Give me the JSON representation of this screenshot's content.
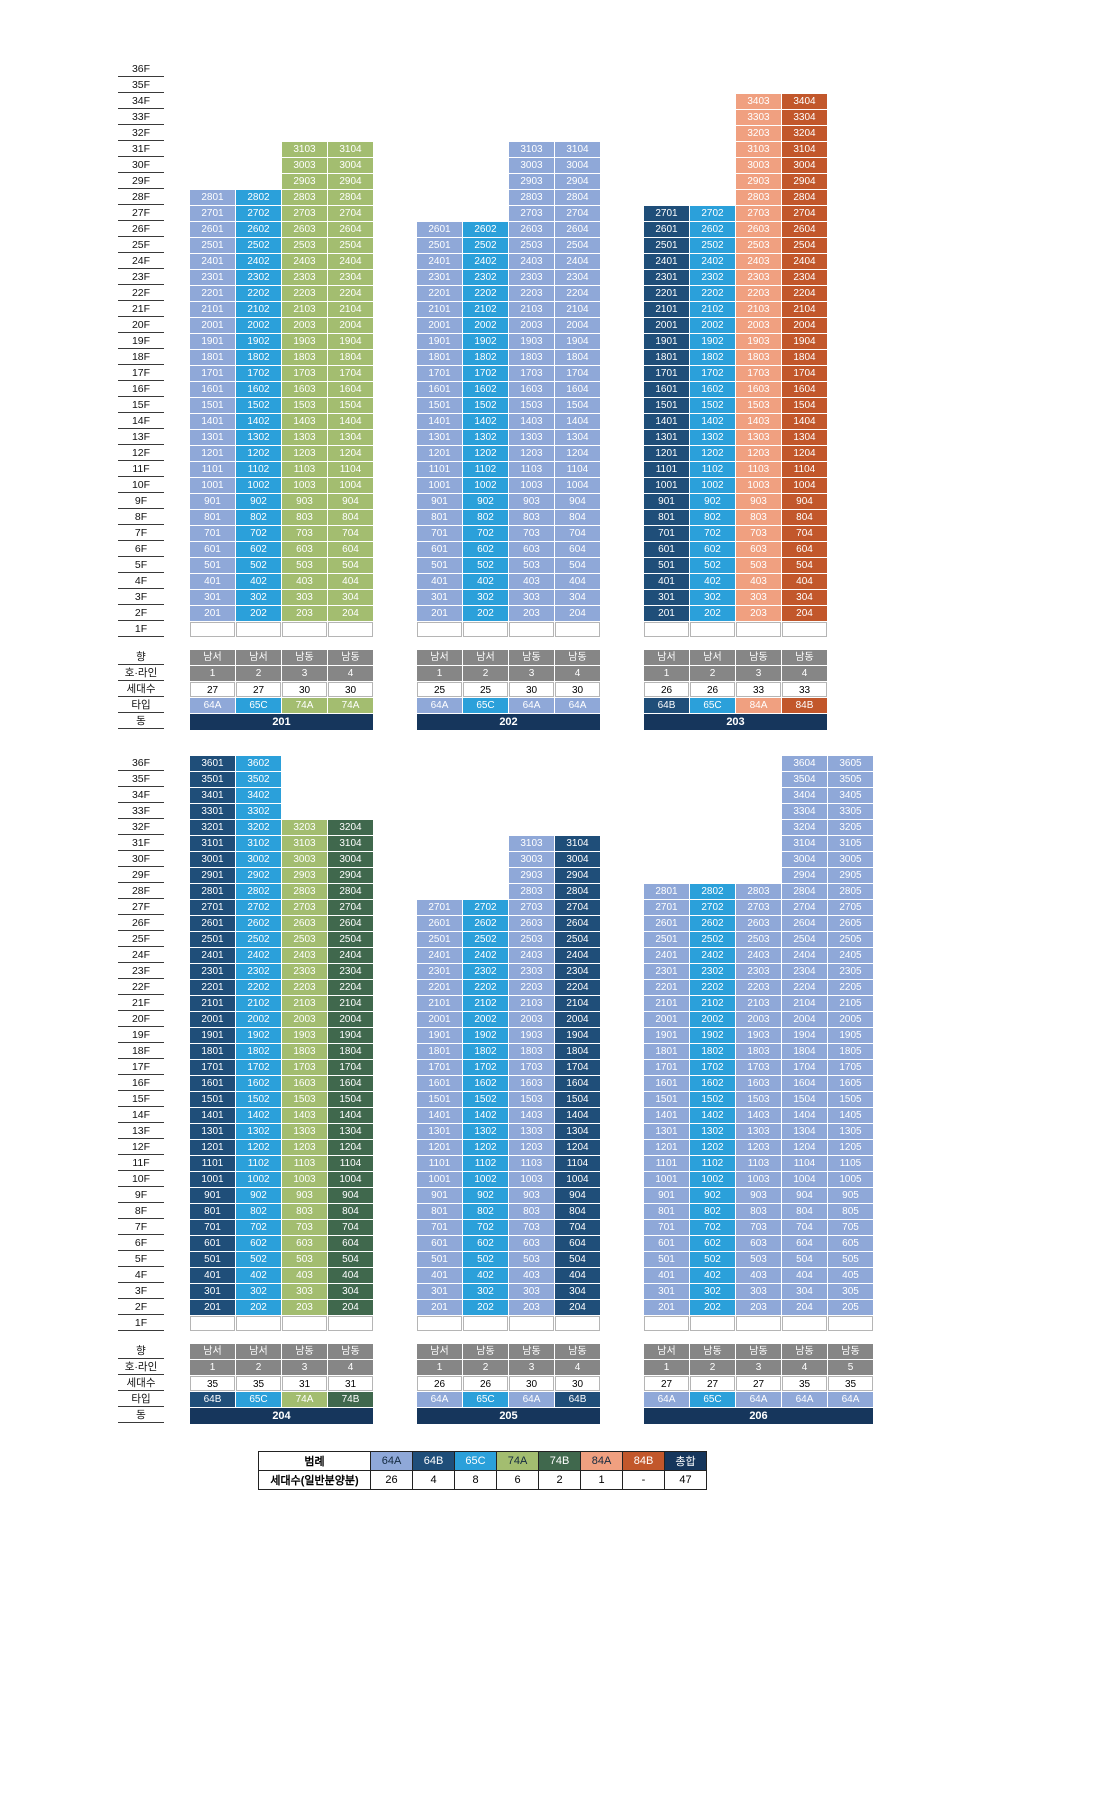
{
  "palette": {
    "64A": "#8fa8d8",
    "64B": "#1f4e79",
    "65C": "#2ba0da",
    "74A": "#a3bd70",
    "74B": "#40684d",
    "84A": "#f0a080",
    "84B": "#c2572b",
    "총합": "#16365c",
    "header_gray": "#868686",
    "dong_navy": "#16365c"
  },
  "chart_data": {
    "type": "table",
    "floor_labels": [
      "36F",
      "35F",
      "34F",
      "33F",
      "32F",
      "31F",
      "30F",
      "29F",
      "28F",
      "27F",
      "26F",
      "25F",
      "24F",
      "23F",
      "22F",
      "21F",
      "20F",
      "19F",
      "18F",
      "17F",
      "16F",
      "15F",
      "14F",
      "13F",
      "12F",
      "11F",
      "10F",
      "9F",
      "8F",
      "7F",
      "6F",
      "5F",
      "4F",
      "3F",
      "2F",
      "1F"
    ],
    "footer_row_labels": [
      "향",
      "호·라인",
      "세대수",
      "타입",
      "동"
    ],
    "unit_number_rule": "floor*100+line",
    "sections": [
      {
        "buildings": [
          {
            "dong": "201",
            "lines": [
              {
                "no": 1,
                "direction": "남서",
                "type": "64A",
                "top_floor": 28,
                "bottom_floor": 2,
                "household_count": 27
              },
              {
                "no": 2,
                "direction": "남서",
                "type": "65C",
                "top_floor": 28,
                "bottom_floor": 2,
                "household_count": 27
              },
              {
                "no": 3,
                "direction": "남동",
                "type": "74A",
                "top_floor": 31,
                "bottom_floor": 2,
                "household_count": 30
              },
              {
                "no": 4,
                "direction": "남동",
                "type": "74A",
                "top_floor": 31,
                "bottom_floor": 2,
                "household_count": 30
              }
            ]
          },
          {
            "dong": "202",
            "lines": [
              {
                "no": 1,
                "direction": "남서",
                "type": "64A",
                "top_floor": 26,
                "bottom_floor": 2,
                "household_count": 25
              },
              {
                "no": 2,
                "direction": "남서",
                "type": "65C",
                "top_floor": 26,
                "bottom_floor": 2,
                "household_count": 25
              },
              {
                "no": 3,
                "direction": "남동",
                "type": "64A",
                "top_floor": 31,
                "bottom_floor": 2,
                "household_count": 30
              },
              {
                "no": 4,
                "direction": "남동",
                "type": "64A",
                "top_floor": 31,
                "bottom_floor": 2,
                "household_count": 30
              }
            ]
          },
          {
            "dong": "203",
            "lines": [
              {
                "no": 1,
                "direction": "남서",
                "type": "64B",
                "top_floor": 27,
                "bottom_floor": 2,
                "household_count": 26
              },
              {
                "no": 2,
                "direction": "남서",
                "type": "65C",
                "top_floor": 27,
                "bottom_floor": 2,
                "household_count": 26
              },
              {
                "no": 3,
                "direction": "남동",
                "type": "84A",
                "top_floor": 34,
                "bottom_floor": 2,
                "household_count": 33
              },
              {
                "no": 4,
                "direction": "남동",
                "type": "84B",
                "top_floor": 34,
                "bottom_floor": 2,
                "household_count": 33
              }
            ]
          }
        ]
      },
      {
        "buildings": [
          {
            "dong": "204",
            "lines": [
              {
                "no": 1,
                "direction": "남서",
                "type": "64B",
                "top_floor": 36,
                "bottom_floor": 2,
                "household_count": 35
              },
              {
                "no": 2,
                "direction": "남서",
                "type": "65C",
                "top_floor": 36,
                "bottom_floor": 2,
                "household_count": 35
              },
              {
                "no": 3,
                "direction": "남동",
                "type": "74A",
                "top_floor": 32,
                "bottom_floor": 2,
                "household_count": 31
              },
              {
                "no": 4,
                "direction": "남동",
                "type": "74B",
                "top_floor": 32,
                "bottom_floor": 2,
                "household_count": 31
              }
            ]
          },
          {
            "dong": "205",
            "lines": [
              {
                "no": 1,
                "direction": "남서",
                "type": "64A",
                "top_floor": 27,
                "bottom_floor": 2,
                "household_count": 26
              },
              {
                "no": 2,
                "direction": "남동",
                "type": "65C",
                "top_floor": 27,
                "bottom_floor": 2,
                "household_count": 26
              },
              {
                "no": 3,
                "direction": "남동",
                "type": "64A",
                "top_floor": 31,
                "bottom_floor": 2,
                "household_count": 30
              },
              {
                "no": 4,
                "direction": "남동",
                "type": "64B",
                "top_floor": 31,
                "bottom_floor": 2,
                "household_count": 30
              }
            ]
          },
          {
            "dong": "206",
            "lines": [
              {
                "no": 1,
                "direction": "남서",
                "type": "64A",
                "top_floor": 28,
                "bottom_floor": 2,
                "household_count": 27
              },
              {
                "no": 2,
                "direction": "남동",
                "type": "65C",
                "top_floor": 28,
                "bottom_floor": 2,
                "household_count": 27
              },
              {
                "no": 3,
                "direction": "남동",
                "type": "64A",
                "top_floor": 28,
                "bottom_floor": 2,
                "household_count": 27
              },
              {
                "no": 4,
                "direction": "남동",
                "type": "64A",
                "top_floor": 36,
                "bottom_floor": 2,
                "household_count": 35
              },
              {
                "no": 5,
                "direction": "남동",
                "type": "64A",
                "top_floor": 36,
                "bottom_floor": 2,
                "household_count": 35
              }
            ]
          }
        ]
      }
    ],
    "legend": {
      "header_label": "범례",
      "count_label": "세대수(일반분양분)",
      "columns": [
        {
          "label": "64A",
          "count": "26"
        },
        {
          "label": "64B",
          "count": "4"
        },
        {
          "label": "65C",
          "count": "8"
        },
        {
          "label": "74A",
          "count": "6"
        },
        {
          "label": "74B",
          "count": "2"
        },
        {
          "label": "84A",
          "count": "1"
        },
        {
          "label": "84B",
          "count": "-"
        },
        {
          "label": "총합",
          "count": "47"
        }
      ]
    }
  }
}
